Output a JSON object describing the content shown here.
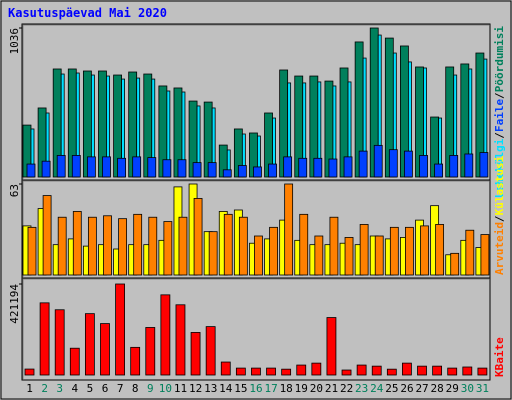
{
  "title": "Kasutuspäevad Mai 2020",
  "legend_separator": "/",
  "chart_data": [
    {
      "type": "bar",
      "series": [
        {
          "name": "Pöördumisi",
          "color": "#00805c",
          "values": [
            361,
            480,
            751,
            751,
            737,
            737,
            709,
            730,
            716,
            633,
            619,
            528,
            521,
            222,
            334,
            306,
            445,
            744,
            702,
            702,
            667,
            758,
            939,
            1036,
            966,
            911,
            765,
            417,
            765,
            786,
            862
          ]
        },
        {
          "name": "Faile",
          "color": "#0040ff",
          "values": [
            90,
            110,
            150,
            150,
            140,
            140,
            130,
            140,
            135,
            120,
            120,
            100,
            100,
            50,
            80,
            70,
            90,
            140,
            130,
            130,
            125,
            140,
            180,
            220,
            190,
            180,
            150,
            90,
            150,
            160,
            170
          ]
        },
        {
          "name": "Lehekülgi",
          "color": "#00e0ff",
          "values": [
            334,
            445,
            716,
            723,
            709,
            702,
            681,
            688,
            681,
            598,
            591,
            494,
            480,
            188,
            299,
            285,
            410,
            654,
            654,
            661,
            633,
            661,
            827,
            987,
            862,
            800,
            758,
            410,
            709,
            751,
            820
          ]
        }
      ],
      "ylim": [
        0,
        1036
      ],
      "yticks": [
        1036
      ]
    },
    {
      "type": "bar",
      "series": [
        {
          "name": "Külastusi",
          "color": "#ffff00",
          "values": [
            34,
            46,
            21,
            25,
            20,
            21,
            18,
            21,
            21,
            24,
            61,
            63,
            30,
            44,
            45,
            22,
            25,
            38,
            24,
            21,
            21,
            22,
            21,
            27,
            25,
            26,
            38,
            48,
            14,
            24,
            19
          ]
        },
        {
          "name": "Arvuteid",
          "color": "#ff8000",
          "values": [
            33,
            55,
            40,
            44,
            40,
            41,
            39,
            42,
            40,
            37,
            40,
            53,
            30,
            42,
            40,
            27,
            33,
            63,
            42,
            27,
            40,
            26,
            35,
            27,
            33,
            33,
            34,
            35,
            15,
            31,
            28
          ]
        }
      ],
      "ylim": [
        0,
        63
      ],
      "yticks": [
        63
      ]
    },
    {
      "type": "bar",
      "categories": [
        "1",
        "2",
        "3",
        "4",
        "5",
        "6",
        "7",
        "8",
        "9",
        "10",
        "11",
        "12",
        "13",
        "14",
        "15",
        "16",
        "17",
        "18",
        "19",
        "20",
        "21",
        "22",
        "23",
        "24",
        "25",
        "26",
        "27",
        "28",
        "29",
        "30",
        "31"
      ],
      "category_colors": [
        "#000000",
        "#00805c",
        "#00805c",
        "#000000",
        "#000000",
        "#000000",
        "#000000",
        "#000000",
        "#00805c",
        "#00805c",
        "#000000",
        "#000000",
        "#000000",
        "#000000",
        "#000000",
        "#00805c",
        "#00805c",
        "#000000",
        "#000000",
        "#000000",
        "#000000",
        "#000000",
        "#00805c",
        "#00805c",
        "#000000",
        "#000000",
        "#000000",
        "#000000",
        "#000000",
        "#00805c",
        "#00805c"
      ],
      "series": [
        {
          "name": "KBaite",
          "color": "#ff0000",
          "values": [
            27500,
            334000,
            302000,
            124000,
            284000,
            238000,
            421194,
            128000,
            220000,
            371000,
            325000,
            197000,
            224000,
            60000,
            32000,
            32000,
            32000,
            27000,
            46000,
            55000,
            266000,
            23000,
            46000,
            41000,
            27000,
            55000,
            41000,
            41000,
            32000,
            37000,
            32000
          ]
        }
      ],
      "ylim": [
        0,
        421194
      ],
      "yticks": [
        421194
      ]
    }
  ]
}
